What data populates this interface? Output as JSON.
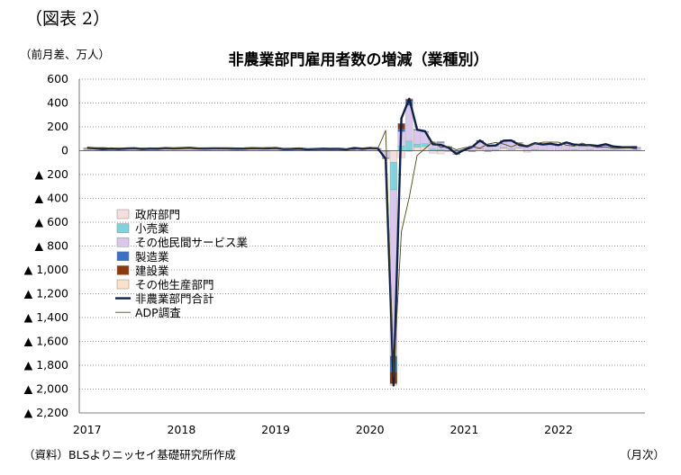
{
  "figure_label": "（図表 2）",
  "unit_label": "（前月差、万人）",
  "title": "非農業部門雇用者数の増減（業種別）",
  "source": "（資料）BLSよりニッセイ基礎研究所作成",
  "x_unit": "（月次）",
  "colors": {
    "government": "#f4dede",
    "retail": "#7fd3dd",
    "other_services": "#d9c8ec",
    "manufacturing": "#3a6fc4",
    "construction": "#8b3a0e",
    "other_goods": "#fbe3c8",
    "total": "#0d1f4a",
    "adp": "#4a4a1a"
  },
  "chart_data": {
    "type": "bar",
    "stacked": true,
    "title": "非農業部門雇用者数の増減（業種別）",
    "ylabel": "（前月差、万人）",
    "xlabel": "（月次）",
    "ylim": [
      -2200,
      600
    ],
    "y_ticks": [
      600,
      400,
      200,
      0,
      -200,
      -400,
      -600,
      -800,
      -1000,
      -1200,
      -1400,
      -1600,
      -1800,
      -2000,
      -2200
    ],
    "y_tick_labels": [
      "600",
      "400",
      "200",
      "0",
      "▲ 200",
      "▲ 400",
      "▲ 600",
      "▲ 800",
      "▲ 1,000",
      "▲ 1,200",
      "▲ 1,400",
      "▲ 1,600",
      "▲ 1,800",
      "▲ 2,000",
      "▲ 2,200"
    ],
    "x_tick_labels": [
      "2017",
      "2018",
      "2019",
      "2020",
      "2021",
      "2022"
    ],
    "legend_position": "left-middle",
    "grid": true,
    "months": [
      "2017-01",
      "2017-02",
      "2017-03",
      "2017-04",
      "2017-05",
      "2017-06",
      "2017-07",
      "2017-08",
      "2017-09",
      "2017-10",
      "2017-11",
      "2017-12",
      "2018-01",
      "2018-02",
      "2018-03",
      "2018-04",
      "2018-05",
      "2018-06",
      "2018-07",
      "2018-08",
      "2018-09",
      "2018-10",
      "2018-11",
      "2018-12",
      "2019-01",
      "2019-02",
      "2019-03",
      "2019-04",
      "2019-05",
      "2019-06",
      "2019-07",
      "2019-08",
      "2019-09",
      "2019-10",
      "2019-11",
      "2019-12",
      "2020-01",
      "2020-02",
      "2020-03",
      "2020-04",
      "2020-05",
      "2020-06",
      "2020-07",
      "2020-08",
      "2020-09",
      "2020-10",
      "2020-11",
      "2020-12",
      "2021-01",
      "2021-02",
      "2021-03",
      "2021-04",
      "2021-05",
      "2021-06",
      "2021-07",
      "2021-08",
      "2021-09",
      "2021-10",
      "2021-11",
      "2021-12",
      "2022-01",
      "2022-02",
      "2022-03",
      "2022-04",
      "2022-05",
      "2022-06",
      "2022-07",
      "2022-08",
      "2022-09",
      "2022-10",
      "2022-11"
    ],
    "series": [
      {
        "name": "政府部門",
        "kind": "bar",
        "color": "#f4dede",
        "values": [
          2,
          1,
          1,
          2,
          1,
          1,
          2,
          1,
          1,
          2,
          1,
          1,
          2,
          1,
          1,
          1,
          1,
          1,
          1,
          1,
          1,
          2,
          1,
          1,
          2,
          1,
          1,
          2,
          1,
          1,
          2,
          1,
          2,
          1,
          1,
          1,
          2,
          1,
          -1,
          -98,
          -58,
          -5,
          30,
          34,
          -22,
          -27,
          -10,
          -5,
          -2,
          -8,
          14,
          -5,
          2,
          22,
          10,
          20,
          -12,
          5,
          3,
          2,
          2,
          3,
          5,
          2,
          5,
          -2,
          5,
          4,
          3,
          2,
          3
        ]
      },
      {
        "name": "小売業",
        "kind": "bar",
        "color": "#7fd3dd",
        "values": [
          3,
          2,
          1,
          1,
          1,
          1,
          1,
          1,
          1,
          1,
          2,
          1,
          1,
          1,
          1,
          1,
          1,
          1,
          1,
          1,
          1,
          1,
          1,
          1,
          1,
          1,
          1,
          1,
          1,
          1,
          1,
          1,
          1,
          1,
          1,
          1,
          1,
          1,
          -5,
          -230,
          40,
          80,
          25,
          24,
          14,
          10,
          1,
          -3,
          1,
          3,
          4,
          5,
          4,
          3,
          3,
          2,
          3,
          4,
          2,
          1,
          1,
          2,
          3,
          1,
          1,
          1,
          1,
          1,
          1,
          1,
          1
        ]
      },
      {
        "name": "その他民間サービス業",
        "kind": "bar",
        "color": "#d9c8ec",
        "values": [
          14,
          12,
          9,
          12,
          10,
          13,
          14,
          10,
          12,
          11,
          13,
          12,
          14,
          16,
          12,
          12,
          13,
          12,
          12,
          11,
          12,
          13,
          12,
          12,
          14,
          9,
          10,
          12,
          8,
          10,
          11,
          11,
          10,
          10,
          13,
          12,
          14,
          12,
          -55,
          -1395,
          120,
          300,
          118,
          98,
          55,
          58,
          28,
          -20,
          5,
          35,
          52,
          38,
          35,
          55,
          68,
          42,
          40,
          48,
          42,
          48,
          40,
          58,
          36,
          38,
          36,
          34,
          42,
          24,
          22,
          21,
          20
        ]
      },
      {
        "name": "製造業",
        "kind": "bar",
        "color": "#3a6fc4",
        "values": [
          1,
          1,
          1,
          1,
          1,
          1,
          1,
          1,
          1,
          1,
          2,
          2,
          1,
          2,
          2,
          1,
          1,
          2,
          2,
          1,
          1,
          2,
          2,
          2,
          1,
          1,
          1,
          1,
          0,
          0,
          0,
          0,
          0,
          -3,
          5,
          0,
          0,
          1,
          -2,
          -133,
          22,
          36,
          3,
          3,
          2,
          4,
          3,
          3,
          1,
          1,
          5,
          3,
          3,
          2,
          3,
          3,
          3,
          3,
          2,
          3,
          2,
          3,
          4,
          4,
          2,
          2,
          3,
          3,
          2,
          3,
          2
        ]
      },
      {
        "name": "建設業",
        "kind": "bar",
        "color": "#8b3a0e",
        "values": [
          3,
          2,
          1,
          1,
          1,
          1,
          1,
          1,
          1,
          1,
          2,
          2,
          2,
          3,
          2,
          2,
          2,
          2,
          2,
          2,
          2,
          2,
          2,
          2,
          3,
          1,
          1,
          1,
          1,
          1,
          1,
          1,
          1,
          1,
          1,
          1,
          4,
          3,
          -3,
          -99,
          45,
          16,
          2,
          2,
          3,
          3,
          2,
          -3,
          1,
          -1,
          9,
          -1,
          -1,
          1,
          1,
          1,
          1,
          2,
          2,
          2,
          1,
          2,
          2,
          2,
          1,
          2,
          2,
          2,
          1,
          1,
          1
        ]
      },
      {
        "name": "その他生産部門",
        "kind": "bar",
        "color": "#fbe3c8",
        "values": [
          1,
          1,
          1,
          1,
          1,
          1,
          1,
          1,
          1,
          1,
          1,
          1,
          1,
          1,
          1,
          1,
          1,
          1,
          1,
          1,
          1,
          1,
          1,
          1,
          1,
          1,
          1,
          1,
          1,
          1,
          1,
          1,
          1,
          1,
          1,
          1,
          1,
          1,
          -1,
          -15,
          2,
          5,
          2,
          2,
          1,
          1,
          1,
          1,
          1,
          1,
          2,
          1,
          1,
          1,
          1,
          1,
          1,
          1,
          1,
          1,
          1,
          1,
          1,
          1,
          1,
          1,
          1,
          1,
          1,
          1,
          1
        ]
      },
      {
        "name": "非農業部門合計",
        "kind": "line",
        "color": "#0d1f4a",
        "values": [
          24,
          19,
          14,
          18,
          15,
          18,
          20,
          15,
          17,
          17,
          21,
          19,
          21,
          24,
          19,
          18,
          19,
          19,
          19,
          17,
          18,
          21,
          19,
          19,
          22,
          14,
          15,
          18,
          12,
          14,
          16,
          15,
          15,
          11,
          22,
          16,
          22,
          19,
          -69,
          -1970,
          271,
          436,
          176,
          164,
          54,
          49,
          25,
          -27,
          7,
          31,
          86,
          41,
          44,
          84,
          86,
          48,
          36,
          63,
          52,
          58,
          47,
          69,
          51,
          48,
          47,
          40,
          54,
          35,
          30,
          29,
          30
        ]
      },
      {
        "name": "ADP調査",
        "kind": "line",
        "color": "#4a4a1a",
        "values": [
          24,
          25,
          26,
          22,
          21,
          18,
          17,
          22,
          16,
          20,
          18,
          23,
          22,
          24,
          21,
          18,
          18,
          18,
          22,
          16,
          21,
          23,
          18,
          27,
          21,
          16,
          18,
          24,
          15,
          13,
          15,
          19,
          13,
          12,
          11,
          19,
          29,
          18,
          170,
          -1900,
          -680,
          -390,
          -40,
          17,
          75,
          27,
          35,
          8,
          25,
          33,
          22,
          55,
          68,
          56,
          32,
          60,
          41,
          58,
          71,
          72,
          71,
          46,
          38,
          64,
          41,
          28,
          32,
          19,
          21,
          24,
          13
        ]
      }
    ]
  }
}
